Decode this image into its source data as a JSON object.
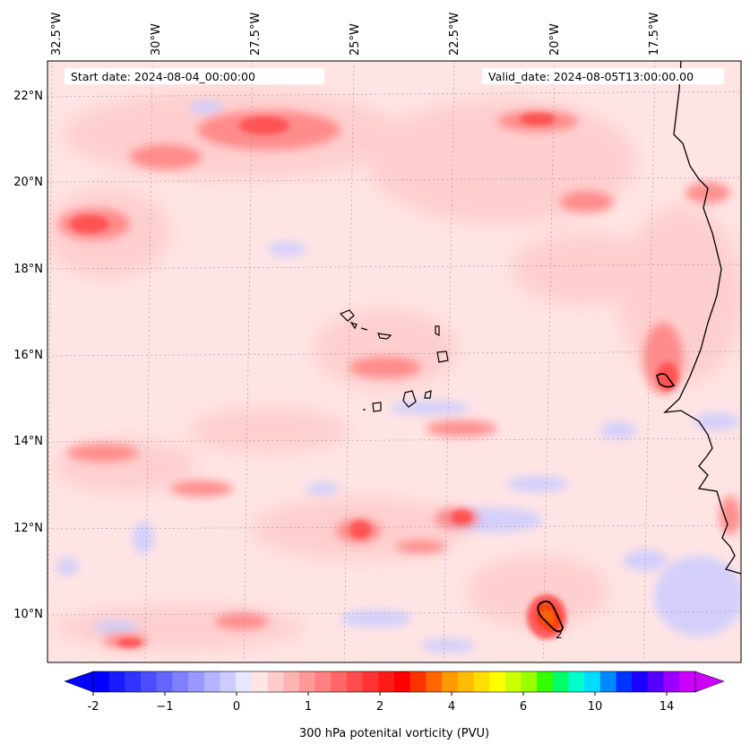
{
  "map": {
    "variable": "300 hPa potential vorticity",
    "start_date_label": "Start date: 2024-08-04_00:00:00",
    "valid_date_label": "Valid_date: 2024-08-05T13:00:00.00",
    "lon_labels": [
      "32.5°W",
      "30°W",
      "27.5°W",
      "25°W",
      "22.5°W",
      "20°W",
      "17.5°W"
    ],
    "lat_labels": [
      "22°N",
      "20°N",
      "18°N",
      "16°N",
      "14°N",
      "12°N",
      "10°N"
    ],
    "contour_label": "2",
    "colorbar": {
      "label": "300 hPa potenital vorticity (PVU)",
      "tick_labels": [
        "-2",
        "−1",
        "0",
        "1",
        "2",
        "4",
        "6",
        "10",
        "14"
      ],
      "tick_values": [
        -2,
        -1,
        0,
        1,
        2,
        4,
        6,
        10,
        14
      ],
      "colors": [
        "#0000ff",
        "#1a1aff",
        "#3333ff",
        "#4d4dff",
        "#6666ff",
        "#8080ff",
        "#9999ff",
        "#b3b3ff",
        "#ccccff",
        "#e6e6ff",
        "#ffe6e6",
        "#ffcccc",
        "#ffb3b3",
        "#ff9999",
        "#ff8080",
        "#ff6666",
        "#ff4d4d",
        "#ff3333",
        "#ff1a1a",
        "#ff0000",
        "#ff3300",
        "#ff6600",
        "#ff9900",
        "#ffbb00",
        "#ffdd00",
        "#ffff00",
        "#ccff00",
        "#99ff00",
        "#33ff00",
        "#00ff66",
        "#00ffcc",
        "#00ddff",
        "#0088ff",
        "#0033ff",
        "#1a00ff",
        "#5500ff",
        "#9900ff",
        "#cc00ff"
      ],
      "extend_low_color": "#0000ff",
      "extend_high_color": "#cc00ff"
    }
  }
}
